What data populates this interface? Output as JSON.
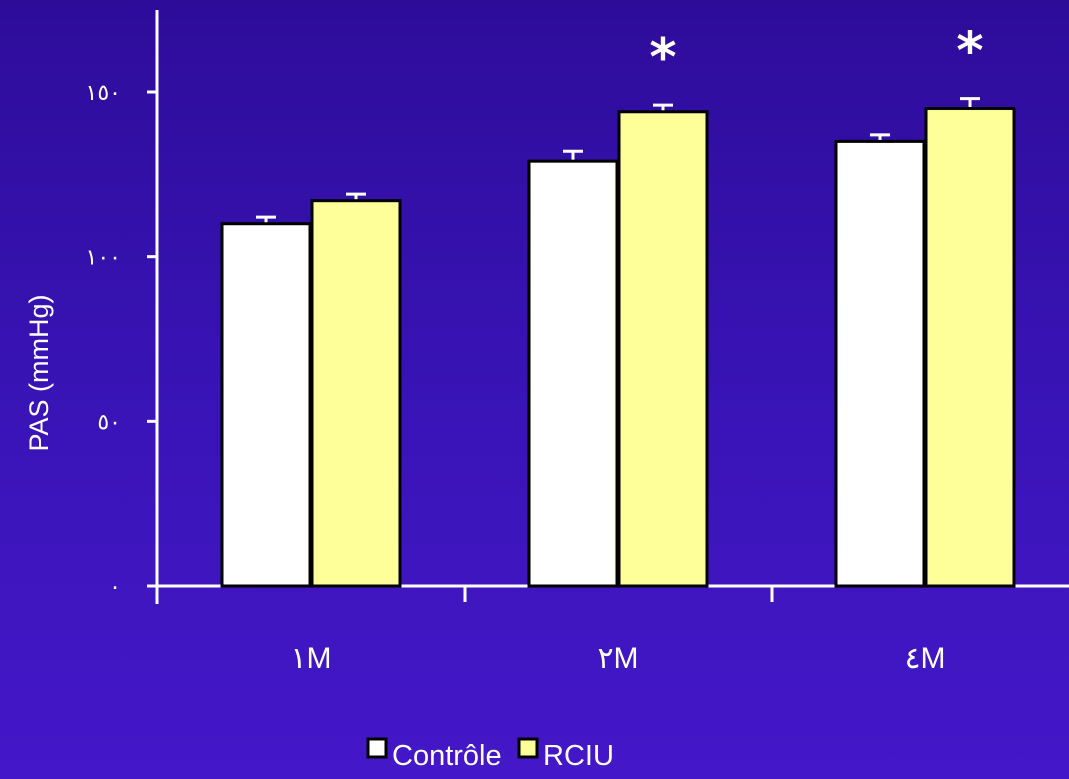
{
  "chart_data": {
    "type": "bar",
    "ylabel": "PAS (mmHg)",
    "xlabel": "",
    "ylim": [
      0,
      150
    ],
    "yticks": [
      0,
      50,
      100,
      150
    ],
    "ytick_labels": [
      "٠",
      "٥٠",
      "١٠٠",
      "١٥٠"
    ],
    "categories": [
      "١M",
      "٢M",
      "٤M"
    ],
    "series": [
      {
        "name": "Contrôle",
        "color": "#ffffff",
        "values": [
          110,
          129,
          135
        ],
        "errors": [
          2,
          3,
          2
        ]
      },
      {
        "name": "RCIU",
        "color": "#ffff99",
        "values": [
          117,
          144,
          145
        ],
        "errors": [
          2,
          2,
          3
        ]
      }
    ],
    "significance": [
      "",
      "*",
      "*"
    ],
    "legend_position": "bottom",
    "grid": false
  },
  "colors": {
    "background": "#3a14b8",
    "axis": "#ffffff",
    "bar_outline": "#000000"
  }
}
